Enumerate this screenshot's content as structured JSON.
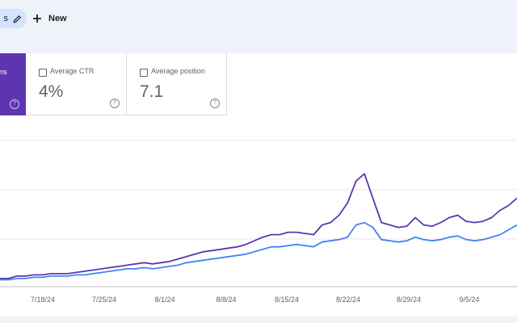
{
  "toolbar": {
    "chip_label": "s",
    "new_label": "New"
  },
  "metrics": {
    "active": {
      "label": "ns"
    },
    "ctr": {
      "label": "Average CTR",
      "value": "4%"
    },
    "position": {
      "label": "Average position",
      "value": "7.1"
    }
  },
  "chart_data": {
    "type": "line",
    "x_tick_labels": [
      "7/18/24",
      "7/25/24",
      "8/1/24",
      "8/8/24",
      "8/15/24",
      "8/22/24",
      "8/29/24",
      "9/5/24"
    ],
    "grid": true,
    "series": [
      {
        "color": "#5e35b1",
        "values": [
          0.3,
          0.3,
          0.4,
          0.4,
          0.45,
          0.45,
          0.5,
          0.5,
          0.5,
          0.55,
          0.6,
          0.65,
          0.7,
          0.75,
          0.8,
          0.85,
          0.9,
          0.95,
          0.9,
          0.95,
          1.0,
          1.1,
          1.2,
          1.3,
          1.4,
          1.45,
          1.5,
          1.55,
          1.6,
          1.7,
          1.85,
          2.0,
          2.1,
          2.1,
          2.2,
          2.2,
          2.15,
          2.1,
          2.5,
          2.6,
          2.9,
          3.4,
          4.3,
          4.6,
          3.6,
          2.6,
          2.5,
          2.4,
          2.45,
          2.8,
          2.5,
          2.45,
          2.6,
          2.8,
          2.9,
          2.65,
          2.6,
          2.65,
          2.8,
          3.1,
          3.3,
          3.6
        ]
      },
      {
        "color": "#4285f4",
        "values": [
          0.25,
          0.25,
          0.3,
          0.3,
          0.35,
          0.35,
          0.4,
          0.4,
          0.4,
          0.45,
          0.45,
          0.5,
          0.55,
          0.6,
          0.65,
          0.7,
          0.7,
          0.75,
          0.7,
          0.75,
          0.8,
          0.85,
          0.95,
          1.0,
          1.05,
          1.1,
          1.15,
          1.2,
          1.25,
          1.3,
          1.4,
          1.5,
          1.6,
          1.6,
          1.65,
          1.7,
          1.65,
          1.6,
          1.8,
          1.85,
          1.9,
          2.0,
          2.5,
          2.6,
          2.4,
          1.9,
          1.85,
          1.8,
          1.85,
          2.0,
          1.9,
          1.85,
          1.9,
          2.0,
          2.05,
          1.9,
          1.85,
          1.9,
          2.0,
          2.1,
          2.3,
          2.5
        ]
      }
    ]
  }
}
